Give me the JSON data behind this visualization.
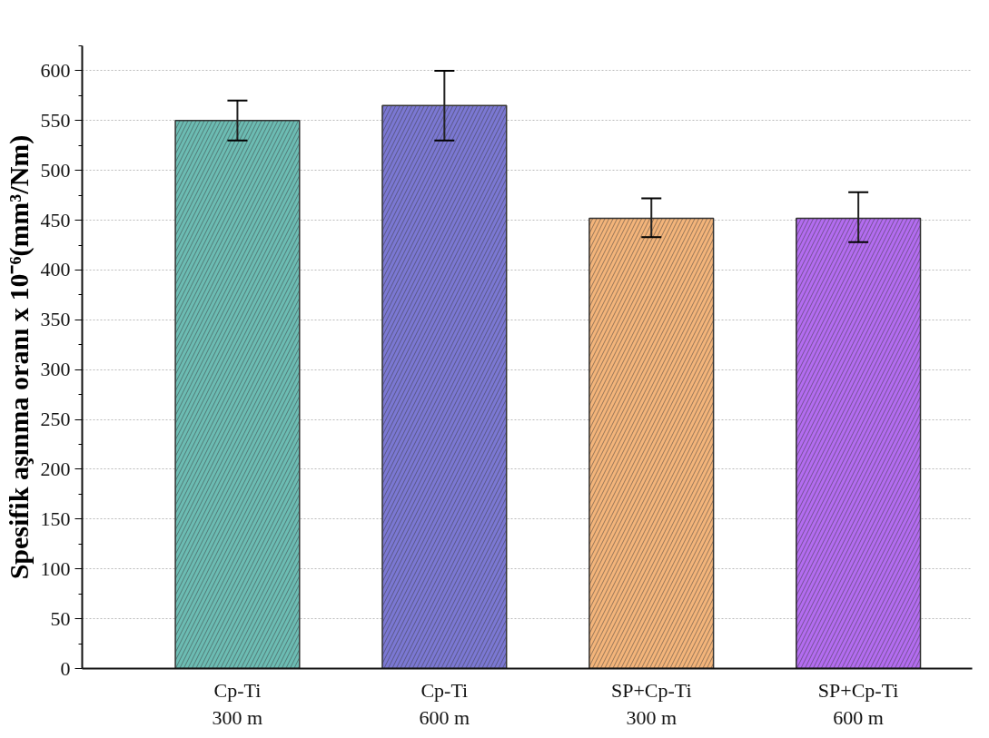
{
  "chart_data": {
    "type": "bar",
    "ylabel": "Spesifik aşınma oranı x 10⁻⁶(mm³/Nm)",
    "categories": [
      "Cp-Ti\n300 m",
      "Cp-Ti\n600 m",
      "SP+Cp-Ti\n300 m",
      "SP+Cp-Ti\n600 m"
    ],
    "values": [
      550,
      565,
      452,
      452
    ],
    "errors": [
      [
        530,
        570
      ],
      [
        530,
        600
      ],
      [
        433,
        472
      ],
      [
        428,
        478
      ]
    ],
    "colors": [
      "#6cbcb3",
      "#7b78d3",
      "#f3b47a",
      "#b36cf0"
    ],
    "ylim": [
      0,
      625
    ],
    "yticks": [
      0,
      50,
      100,
      150,
      200,
      250,
      300,
      350,
      400,
      450,
      500,
      550,
      600
    ],
    "grid": "y"
  }
}
